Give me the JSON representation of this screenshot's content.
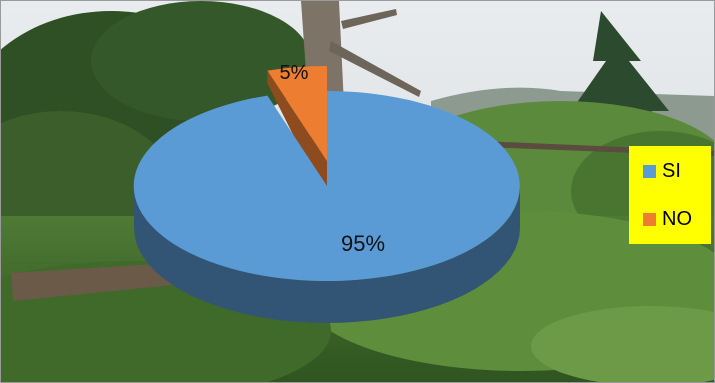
{
  "chart_data": {
    "type": "pie",
    "style": "3d-exploded",
    "categories": [
      "SI",
      "NO"
    ],
    "values": [
      95,
      5
    ],
    "labels": [
      "95%",
      "5%"
    ],
    "colors": [
      "#5b9bd5",
      "#ed7d31"
    ],
    "title": "",
    "legend": {
      "position": "right",
      "background": "#ffff00",
      "items": [
        {
          "label": "SI",
          "color": "#5b9bd5"
        },
        {
          "label": "NO",
          "color": "#ed7d31"
        }
      ]
    }
  }
}
